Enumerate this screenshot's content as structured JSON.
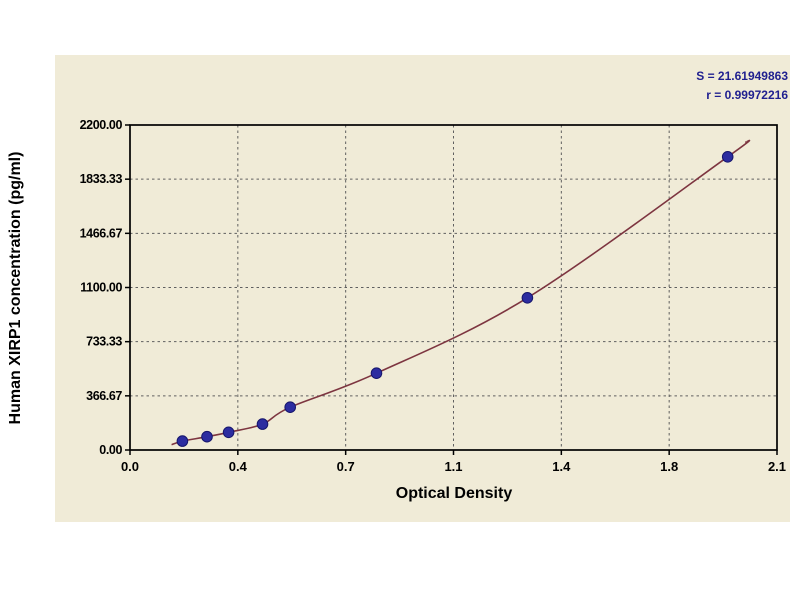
{
  "chart_data": {
    "type": "scatter",
    "title": "",
    "xlabel": "Optical Density",
    "ylabel": "Human XIRP1 concentration (pg/ml)",
    "xlim": [
      0.0,
      2.1
    ],
    "ylim": [
      0,
      2200
    ],
    "x": [
      0.17,
      0.25,
      0.32,
      0.43,
      0.52,
      0.8,
      1.29,
      1.94
    ],
    "y": [
      60,
      90,
      120,
      175,
      290,
      520,
      1030,
      1985
    ],
    "x_tick_positions": [
      0,
      0.35,
      0.7,
      1.05,
      1.4,
      1.75,
      2.1
    ],
    "x_tick_labels": [
      "0.0",
      "0.4",
      "0.7",
      "1.1",
      "1.4",
      "1.8",
      "2.1"
    ],
    "y_tick_positions": [
      0,
      366.67,
      733.33,
      1100,
      1466.67,
      1833.33,
      2200
    ],
    "y_tick_labels": [
      "0.00",
      "366.67",
      "733.33",
      "1100.00",
      "1466.67",
      "1833.33",
      "2200.00"
    ],
    "grid": "dashed",
    "legend": "none",
    "annotations": [
      "S = 21.61949863",
      "r = 0.99972216"
    ],
    "point_color": "#2c2ca0",
    "curve_color": "#7d3540",
    "annotation_color": "#1f1f8f",
    "background": "#f0ebd7",
    "page_background": "#ffffff"
  }
}
